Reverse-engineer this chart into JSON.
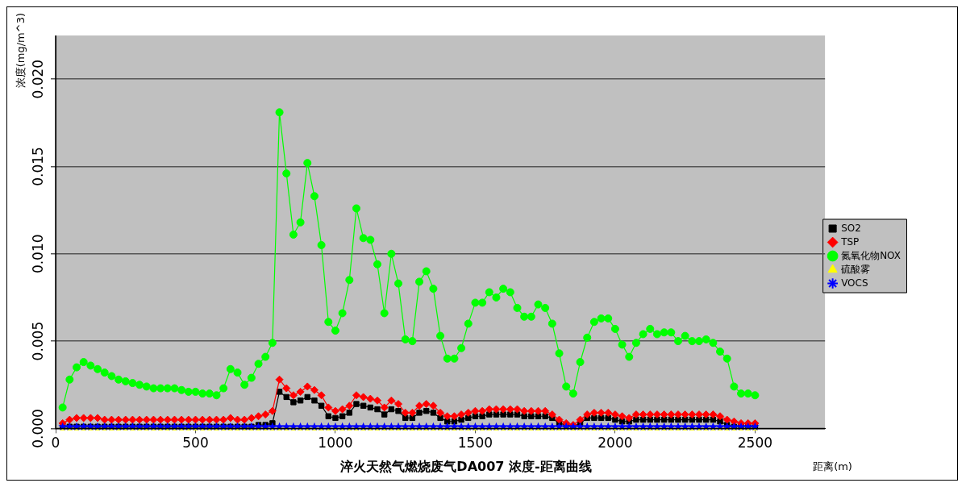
{
  "chart_data": {
    "type": "line",
    "title": "淬火天然气燃烧废气DA007 浓度-距离曲线",
    "xlabel": "距离(m)",
    "ylabel": "浓度(mg/m^3)",
    "xlim": [
      0,
      2750
    ],
    "xticks": [
      0,
      500,
      1000,
      1500,
      2000,
      2500
    ],
    "ylim": [
      0,
      0.0225
    ],
    "yticks": [
      {
        "value": 0,
        "label": "0.000"
      },
      {
        "value": 0.005,
        "label": "0.005"
      },
      {
        "value": 0.01,
        "label": "0.010"
      },
      {
        "value": 0.015,
        "label": "0.015"
      },
      {
        "value": 0.02,
        "label": "0.020"
      }
    ],
    "grid": "y",
    "legend": "right",
    "x": [
      25,
      50,
      75,
      100,
      125,
      150,
      175,
      200,
      225,
      250,
      275,
      300,
      325,
      350,
      375,
      400,
      425,
      450,
      475,
      500,
      525,
      550,
      575,
      600,
      625,
      650,
      675,
      700,
      725,
      750,
      775,
      800,
      825,
      850,
      875,
      900,
      925,
      950,
      975,
      1000,
      1025,
      1050,
      1075,
      1100,
      1125,
      1150,
      1175,
      1200,
      1225,
      1250,
      1275,
      1300,
      1325,
      1350,
      1375,
      1400,
      1425,
      1450,
      1475,
      1500,
      1525,
      1550,
      1575,
      1600,
      1625,
      1650,
      1675,
      1700,
      1725,
      1750,
      1775,
      1800,
      1825,
      1850,
      1875,
      1900,
      1925,
      1950,
      1975,
      2000,
      2025,
      2050,
      2075,
      2100,
      2125,
      2150,
      2175,
      2200,
      2225,
      2250,
      2275,
      2300,
      2325,
      2350,
      2375,
      2400,
      2425,
      2450,
      2475,
      2500
    ],
    "series": [
      {
        "name": "SO2",
        "color": "#000000",
        "marker": "square",
        "values": [
          0.0001,
          0.0001,
          0.0001,
          0.0001,
          0.0001,
          0.0001,
          0.0001,
          0.0001,
          0.0001,
          0.0001,
          0.0001,
          0.0001,
          0.0001,
          0.0001,
          0.0001,
          0.0001,
          0.0001,
          0.0001,
          0.0001,
          0.0001,
          0.0001,
          0.0001,
          0.0001,
          0.0001,
          0.0001,
          0.0001,
          0.0001,
          0.0001,
          0.0002,
          0.0002,
          0.0003,
          0.0021,
          0.0018,
          0.0015,
          0.0016,
          0.0018,
          0.0016,
          0.0013,
          0.0007,
          0.0006,
          0.0007,
          0.0009,
          0.0014,
          0.0013,
          0.0012,
          0.0011,
          0.0008,
          0.0011,
          0.001,
          0.0006,
          0.0006,
          0.0009,
          0.001,
          0.0009,
          0.0006,
          0.0004,
          0.0004,
          0.0005,
          0.0006,
          0.0007,
          0.0007,
          0.0008,
          0.0008,
          0.0008,
          0.0008,
          0.0008,
          0.0007,
          0.0007,
          0.0007,
          0.0007,
          0.0006,
          0.0003,
          0.0002,
          0.0001,
          0.0003,
          0.0006,
          0.0006,
          0.0006,
          0.0006,
          0.0005,
          0.0004,
          0.0004,
          0.0005,
          0.0005,
          0.0005,
          0.0005,
          0.0005,
          0.0005,
          0.0005,
          0.0005,
          0.0005,
          0.0005,
          0.0005,
          0.0005,
          0.0004,
          0.0002,
          0.0001,
          0.0001,
          0.0001,
          0.0001
        ]
      },
      {
        "name": "TSP",
        "color": "#ff0000",
        "marker": "diamond",
        "values": [
          0.0003,
          0.0005,
          0.0006,
          0.0006,
          0.0006,
          0.0006,
          0.0005,
          0.0005,
          0.0005,
          0.0005,
          0.0005,
          0.0005,
          0.0005,
          0.0005,
          0.0005,
          0.0005,
          0.0005,
          0.0005,
          0.0005,
          0.0005,
          0.0005,
          0.0005,
          0.0005,
          0.0005,
          0.0006,
          0.0005,
          0.0005,
          0.0006,
          0.0007,
          0.0008,
          0.001,
          0.0028,
          0.0023,
          0.0019,
          0.0021,
          0.0024,
          0.0022,
          0.0019,
          0.0012,
          0.001,
          0.0011,
          0.0013,
          0.0019,
          0.0018,
          0.0017,
          0.0016,
          0.0012,
          0.0016,
          0.0014,
          0.0009,
          0.0009,
          0.0013,
          0.0014,
          0.0013,
          0.0009,
          0.0007,
          0.0007,
          0.0008,
          0.0009,
          0.001,
          0.001,
          0.0011,
          0.0011,
          0.0011,
          0.0011,
          0.0011,
          0.001,
          0.001,
          0.001,
          0.001,
          0.0008,
          0.0005,
          0.0003,
          0.0002,
          0.0005,
          0.0008,
          0.0009,
          0.0009,
          0.0009,
          0.0008,
          0.0007,
          0.0006,
          0.0008,
          0.0008,
          0.0008,
          0.0008,
          0.0008,
          0.0008,
          0.0008,
          0.0008,
          0.0008,
          0.0008,
          0.0008,
          0.0008,
          0.0007,
          0.0005,
          0.0004,
          0.0003,
          0.0003,
          0.0003
        ]
      },
      {
        "name": "氮氧化物NOX",
        "color": "#00ff00",
        "marker": "circle",
        "values": [
          0.0012,
          0.0028,
          0.0035,
          0.0038,
          0.0036,
          0.0034,
          0.0032,
          0.003,
          0.0028,
          0.0027,
          0.0026,
          0.0025,
          0.0024,
          0.0023,
          0.0023,
          0.0023,
          0.0023,
          0.0022,
          0.0021,
          0.0021,
          0.002,
          0.002,
          0.0019,
          0.0023,
          0.0034,
          0.0032,
          0.0025,
          0.0029,
          0.0037,
          0.0041,
          0.0049,
          0.0181,
          0.0146,
          0.0111,
          0.0118,
          0.0152,
          0.0133,
          0.0105,
          0.0061,
          0.0056,
          0.0066,
          0.0085,
          0.0126,
          0.0109,
          0.0108,
          0.0094,
          0.0066,
          0.01,
          0.0083,
          0.0051,
          0.005,
          0.0084,
          0.009,
          0.008,
          0.0053,
          0.004,
          0.004,
          0.0046,
          0.006,
          0.0072,
          0.0072,
          0.0078,
          0.0075,
          0.008,
          0.0078,
          0.0069,
          0.0064,
          0.0064,
          0.0071,
          0.0069,
          0.006,
          0.0043,
          0.0024,
          0.002,
          0.0038,
          0.0052,
          0.0061,
          0.0063,
          0.0063,
          0.0057,
          0.0048,
          0.0041,
          0.0049,
          0.0054,
          0.0057,
          0.0054,
          0.0055,
          0.0055,
          0.005,
          0.0053,
          0.005,
          0.005,
          0.0051,
          0.0049,
          0.0044,
          0.004,
          0.0024,
          0.002,
          0.002,
          0.0019
        ]
      },
      {
        "name": "硫酸雾",
        "color": "#ffff00",
        "marker": "triangle",
        "values": [
          0,
          0,
          0,
          0,
          0,
          0,
          0,
          0,
          0,
          0,
          0,
          0,
          0,
          0,
          0,
          0,
          0,
          0,
          0,
          0,
          0,
          0,
          0,
          0,
          0,
          0,
          0,
          0,
          0,
          0,
          0,
          0,
          0,
          0,
          0,
          0,
          0,
          0,
          0,
          0,
          0,
          0,
          0,
          0,
          0,
          0,
          0,
          0,
          0,
          0,
          0,
          0,
          0,
          0,
          0,
          0,
          0,
          0,
          0,
          0,
          0,
          0,
          0,
          0,
          0,
          0,
          0,
          0,
          0,
          0,
          0,
          0,
          0,
          0,
          0,
          0,
          0,
          0,
          0,
          0,
          0,
          0,
          0,
          0,
          0,
          0,
          0,
          0,
          0,
          0,
          0,
          0,
          0,
          0,
          0,
          0,
          0,
          0,
          0,
          0
        ]
      },
      {
        "name": "VOCS",
        "color": "#0000ff",
        "marker": "star",
        "values": [
          0.0001,
          0.0001,
          0.0001,
          0.0001,
          0.0001,
          0.0001,
          0.0001,
          0.0001,
          0.0001,
          0.0001,
          0.0001,
          0.0001,
          0.0001,
          0.0001,
          0.0001,
          0.0001,
          0.0001,
          0.0001,
          0.0001,
          0.0001,
          0.0001,
          0.0001,
          0.0001,
          0.0001,
          0.0001,
          0.0001,
          0.0001,
          0.0001,
          0.0001,
          0.0001,
          0.0001,
          0.0001,
          0.0001,
          0.0001,
          0.0001,
          0.0001,
          0.0001,
          0.0001,
          0.0001,
          0.0001,
          0.0001,
          0.0001,
          0.0001,
          0.0001,
          0.0001,
          0.0001,
          0.0001,
          0.0001,
          0.0001,
          0.0001,
          0.0001,
          0.0001,
          0.0001,
          0.0001,
          0.0001,
          0.0001,
          0.0001,
          0.0001,
          0.0001,
          0.0001,
          0.0001,
          0.0001,
          0.0001,
          0.0001,
          0.0001,
          0.0001,
          0.0001,
          0.0001,
          0.0001,
          0.0001,
          0.0001,
          0.0001,
          0.0001,
          0.0001,
          0.0001,
          0.0001,
          0.0001,
          0.0001,
          0.0001,
          0.0001,
          0.0001,
          0.0001,
          0.0001,
          0.0001,
          0.0001,
          0.0001,
          0.0001,
          0.0001,
          0.0001,
          0.0001,
          0.0001,
          0.0001,
          0.0001,
          0.0001,
          0.0001,
          0.0001,
          0.0001,
          0.0001,
          0.0001,
          0.0001
        ]
      }
    ]
  }
}
